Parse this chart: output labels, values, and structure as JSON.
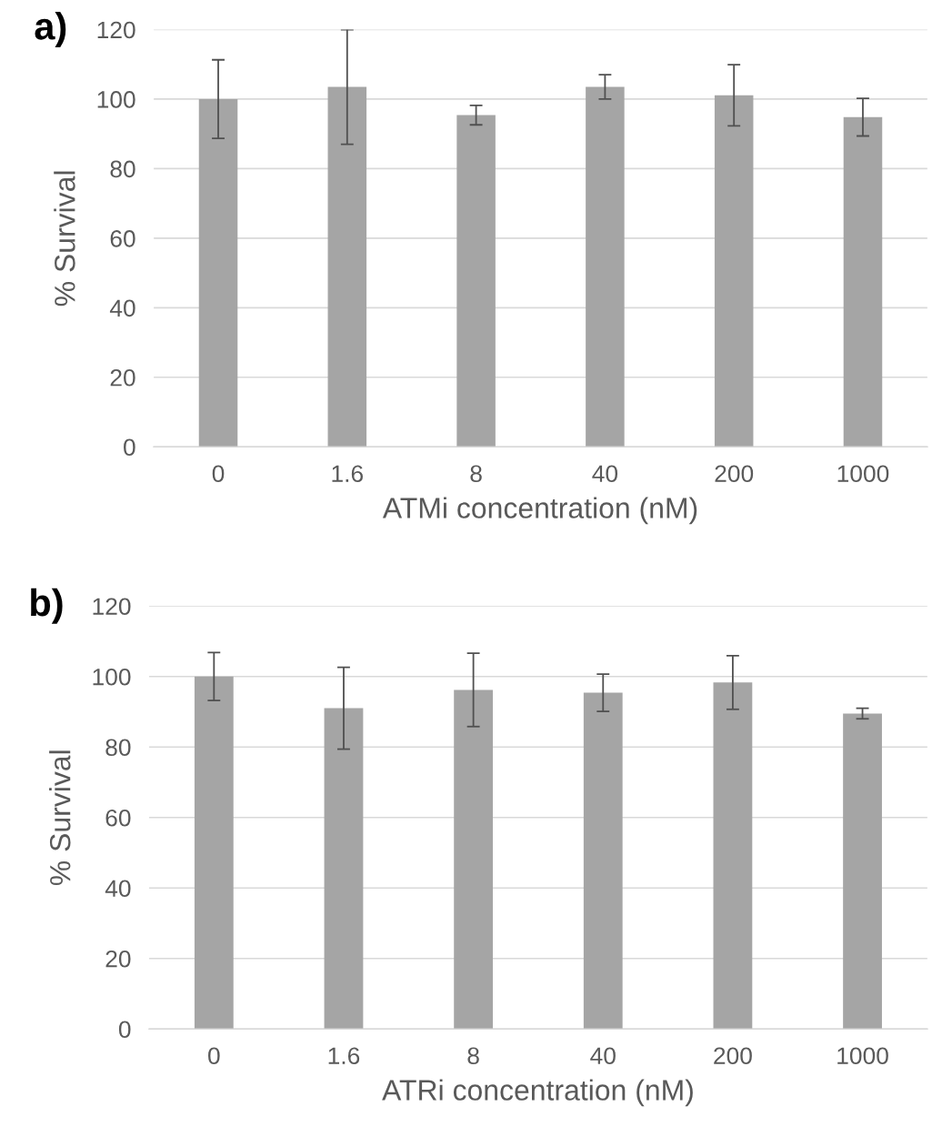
{
  "chart_data": [
    {
      "type": "bar",
      "title": "a)",
      "categories": [
        "0",
        "1.6",
        "8",
        "40",
        "200",
        "1000"
      ],
      "values": [
        100,
        103.5,
        95.4,
        103.5,
        101.1,
        94.8
      ],
      "errors": [
        11.3,
        16.5,
        2.8,
        3.5,
        8.8,
        5.4
      ],
      "color": "#a5a5a5",
      "xlabel": "ATMi concentration (nM)",
      "ylabel": "% Survival",
      "ylim": [
        0,
        120
      ],
      "yticks": [
        0,
        20,
        40,
        60,
        80,
        100,
        120
      ],
      "grid": "y"
    },
    {
      "type": "bar",
      "title": "b)",
      "categories": [
        "0",
        "1.6",
        "8",
        "40",
        "200",
        "1000"
      ],
      "values": [
        100,
        91.0,
        96.2,
        95.4,
        98.3,
        89.5
      ],
      "errors": [
        6.8,
        11.6,
        10.4,
        5.3,
        7.6,
        1.5
      ],
      "color": "#a5a5a5",
      "xlabel": "ATRi concentration (nM)",
      "ylabel": "% Survival",
      "ylim": [
        0,
        120
      ],
      "yticks": [
        0,
        20,
        40,
        60,
        80,
        100,
        120
      ],
      "grid": "y"
    }
  ]
}
